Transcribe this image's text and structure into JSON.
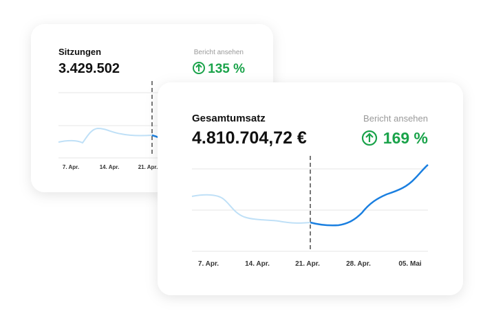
{
  "cards": [
    {
      "title": "Sitzungen",
      "value": "3.429.502",
      "link": "Bericht ansehen",
      "change": "135 %",
      "x_labels": [
        "7. Apr.",
        "14. Apr.",
        "21. Apr."
      ]
    },
    {
      "title": "Gesamtumsatz",
      "value": "4.810.704,72 €",
      "link": "Bericht ansehen",
      "change": "169 %",
      "x_labels": [
        "7. Apr.",
        "14. Apr.",
        "21. Apr.",
        "28. Apr.",
        "05. Mai"
      ]
    }
  ]
}
